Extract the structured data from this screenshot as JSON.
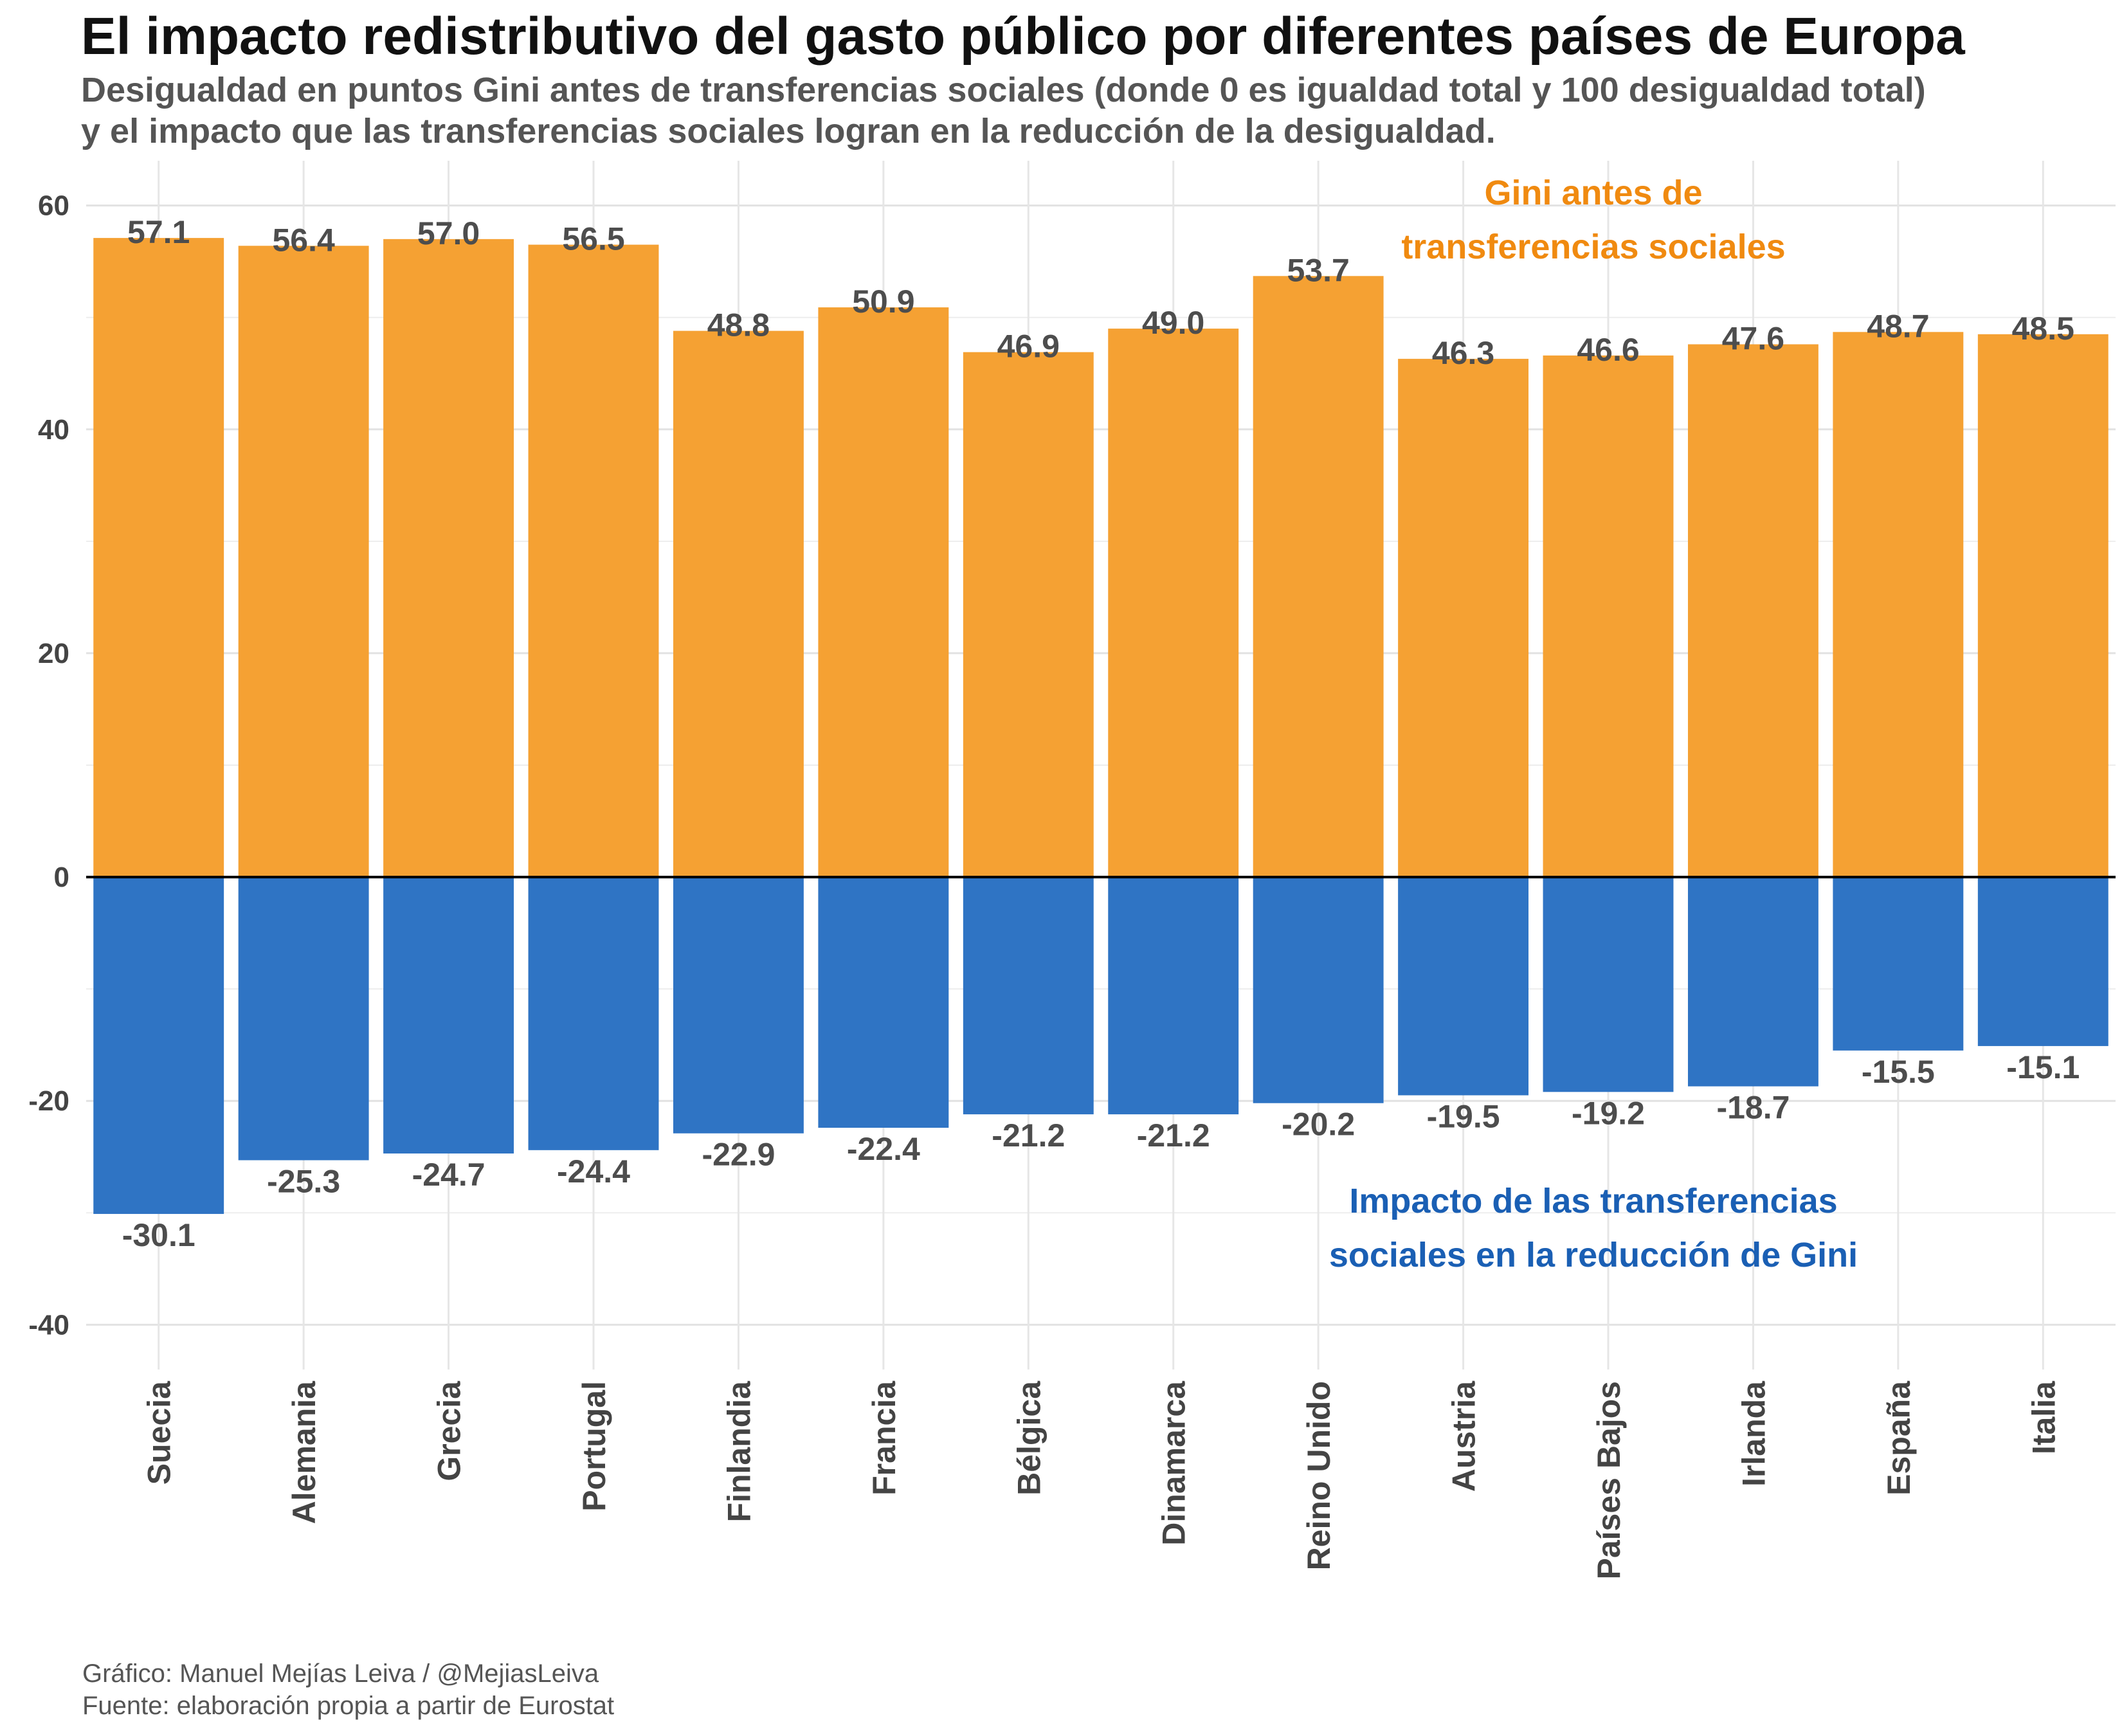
{
  "title": "El impacto redistributivo del gasto público por diferentes países de Europa",
  "subtitle": [
    "Desigualdad en puntos Gini antes de transferencias sociales (donde 0 es igualdad total y 100 desigualdad total)",
    "y el impacto que las transferencias sociales logran en la reducción de la desigualdad."
  ],
  "caption": [
    "Gráfico: Manuel Mejías Leiva / @MejiasLeiva",
    "Fuente: elaboración propia a partir de Eurostat"
  ],
  "colors": {
    "positive": "#f5a133",
    "negative": "#2f74c4",
    "annotation_orange": "#f08a10",
    "annotation_blue": "#1a5fb4"
  },
  "chart_data": {
    "type": "bar",
    "categories": [
      "Suecia",
      "Alemania",
      "Grecia",
      "Portugal",
      "Finlandia",
      "Francia",
      "Bélgica",
      "Dinamarca",
      "Reino Unido",
      "Austria",
      "Países Bajos",
      "Irlanda",
      "España",
      "Italia"
    ],
    "series": [
      {
        "name": "Gini antes de transferencias sociales",
        "values": [
          57.1,
          56.4,
          57.0,
          56.5,
          48.8,
          50.9,
          46.9,
          49.0,
          53.7,
          46.3,
          46.6,
          47.6,
          48.7,
          48.5
        ]
      },
      {
        "name": "Impacto de las transferencias sociales en la reducción de Gini",
        "values": [
          -30.1,
          -25.3,
          -24.7,
          -24.4,
          -22.9,
          -22.4,
          -21.2,
          -21.2,
          -20.2,
          -19.5,
          -19.2,
          -18.7,
          -15.5,
          -15.1
        ]
      }
    ],
    "ylim": [
      -44,
      64
    ],
    "yticks": [
      -40,
      -20,
      0,
      20,
      40,
      60
    ],
    "annotations": [
      {
        "lines": [
          "Gini antes de",
          "transferencias sociales"
        ],
        "color": "orange"
      },
      {
        "lines": [
          "Impacto de las transferencias",
          "sociales en la reducción de Gini"
        ],
        "color": "blue"
      }
    ]
  }
}
